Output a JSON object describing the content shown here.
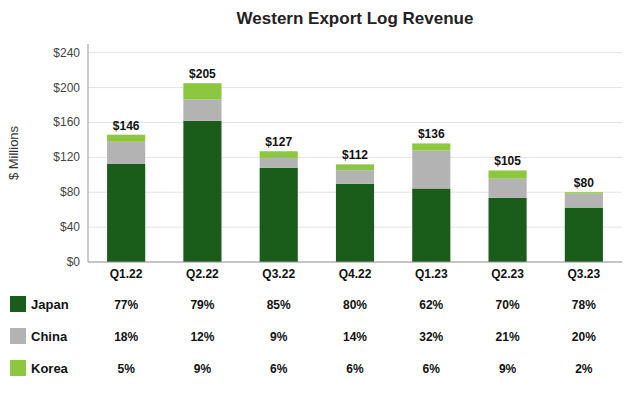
{
  "chart_data": {
    "type": "bar",
    "stacked": true,
    "title": "Western Export Log Revenue",
    "y_label": "$ Millions",
    "categories": [
      "Q1.22",
      "Q2.22",
      "Q3.22",
      "Q4.22",
      "Q1.23",
      "Q2.23",
      "Q3.23"
    ],
    "series": [
      {
        "name": "Japan",
        "color": "#1a5c1a",
        "values": [
          112.42,
          161.95,
          107.95,
          89.6,
          84.32,
          73.5,
          62.4
        ],
        "shares": [
          77,
          79,
          85,
          80,
          62,
          70,
          78
        ],
        "share_labels": [
          "77%",
          "79%",
          "85%",
          "80%",
          "62%",
          "70%",
          "78%"
        ]
      },
      {
        "name": "China",
        "color": "#b3b3b3",
        "values": [
          26.28,
          24.6,
          11.43,
          15.68,
          43.52,
          22.05,
          16
        ],
        "shares": [
          18,
          12,
          9,
          14,
          32,
          21,
          20
        ],
        "share_labels": [
          "18%",
          "12%",
          "9%",
          "14%",
          "32%",
          "21%",
          "20%"
        ]
      },
      {
        "name": "Korea",
        "color": "#8dc63f",
        "values": [
          7.3,
          18.45,
          7.62,
          6.72,
          8.16,
          9.45,
          1.6
        ],
        "shares": [
          5,
          9,
          6,
          6,
          6,
          9,
          2
        ],
        "share_labels": [
          "5%",
          "9%",
          "6%",
          "6%",
          "6%",
          "9%",
          "2%"
        ]
      }
    ],
    "totals": [
      146,
      205,
      127,
      112,
      136,
      105,
      80
    ],
    "total_labels": [
      "$146",
      "$205",
      "$127",
      "$112",
      "$136",
      "$105",
      "$80"
    ],
    "ylim": [
      0,
      250
    ],
    "yticks": [
      {
        "value": 0,
        "label": "$0"
      },
      {
        "value": 40,
        "label": "$40"
      },
      {
        "value": 80,
        "label": "$80"
      },
      {
        "value": 120,
        "label": "$120"
      },
      {
        "value": 160,
        "label": "$160"
      },
      {
        "value": 200,
        "label": "$200"
      },
      {
        "value": 240,
        "label": "$240"
      }
    ],
    "grid": true,
    "legend": "bottom"
  }
}
